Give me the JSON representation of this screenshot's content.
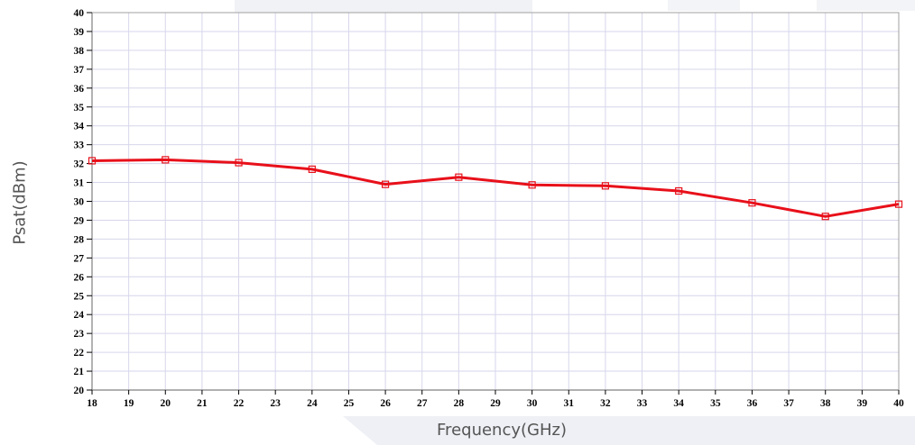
{
  "chart_data": {
    "type": "line",
    "xlabel": "Frequency(GHz)",
    "ylabel": "Psat(dBm)",
    "xlim": [
      18,
      40
    ],
    "ylim": [
      20,
      40
    ],
    "x_ticks": [
      18,
      19,
      20,
      21,
      22,
      23,
      24,
      25,
      26,
      27,
      28,
      29,
      30,
      31,
      32,
      33,
      34,
      35,
      36,
      37,
      38,
      39,
      40
    ],
    "y_ticks": [
      20,
      21,
      22,
      23,
      24,
      25,
      26,
      27,
      28,
      29,
      30,
      31,
      32,
      33,
      34,
      35,
      36,
      37,
      38,
      39,
      40
    ],
    "grid": true,
    "series": [
      {
        "color": "#e8101a",
        "marker": "square",
        "x": [
          18,
          20,
          22,
          24,
          26,
          28,
          30,
          32,
          34,
          36,
          38,
          40
        ],
        "y": [
          32.15,
          32.2,
          32.05,
          31.7,
          30.9,
          31.28,
          30.87,
          30.82,
          30.55,
          29.92,
          29.2,
          29.85
        ]
      }
    ]
  },
  "colors": {
    "grid": "#d6d6ec",
    "axis": "#808080",
    "frame": "#a0a0a0"
  }
}
